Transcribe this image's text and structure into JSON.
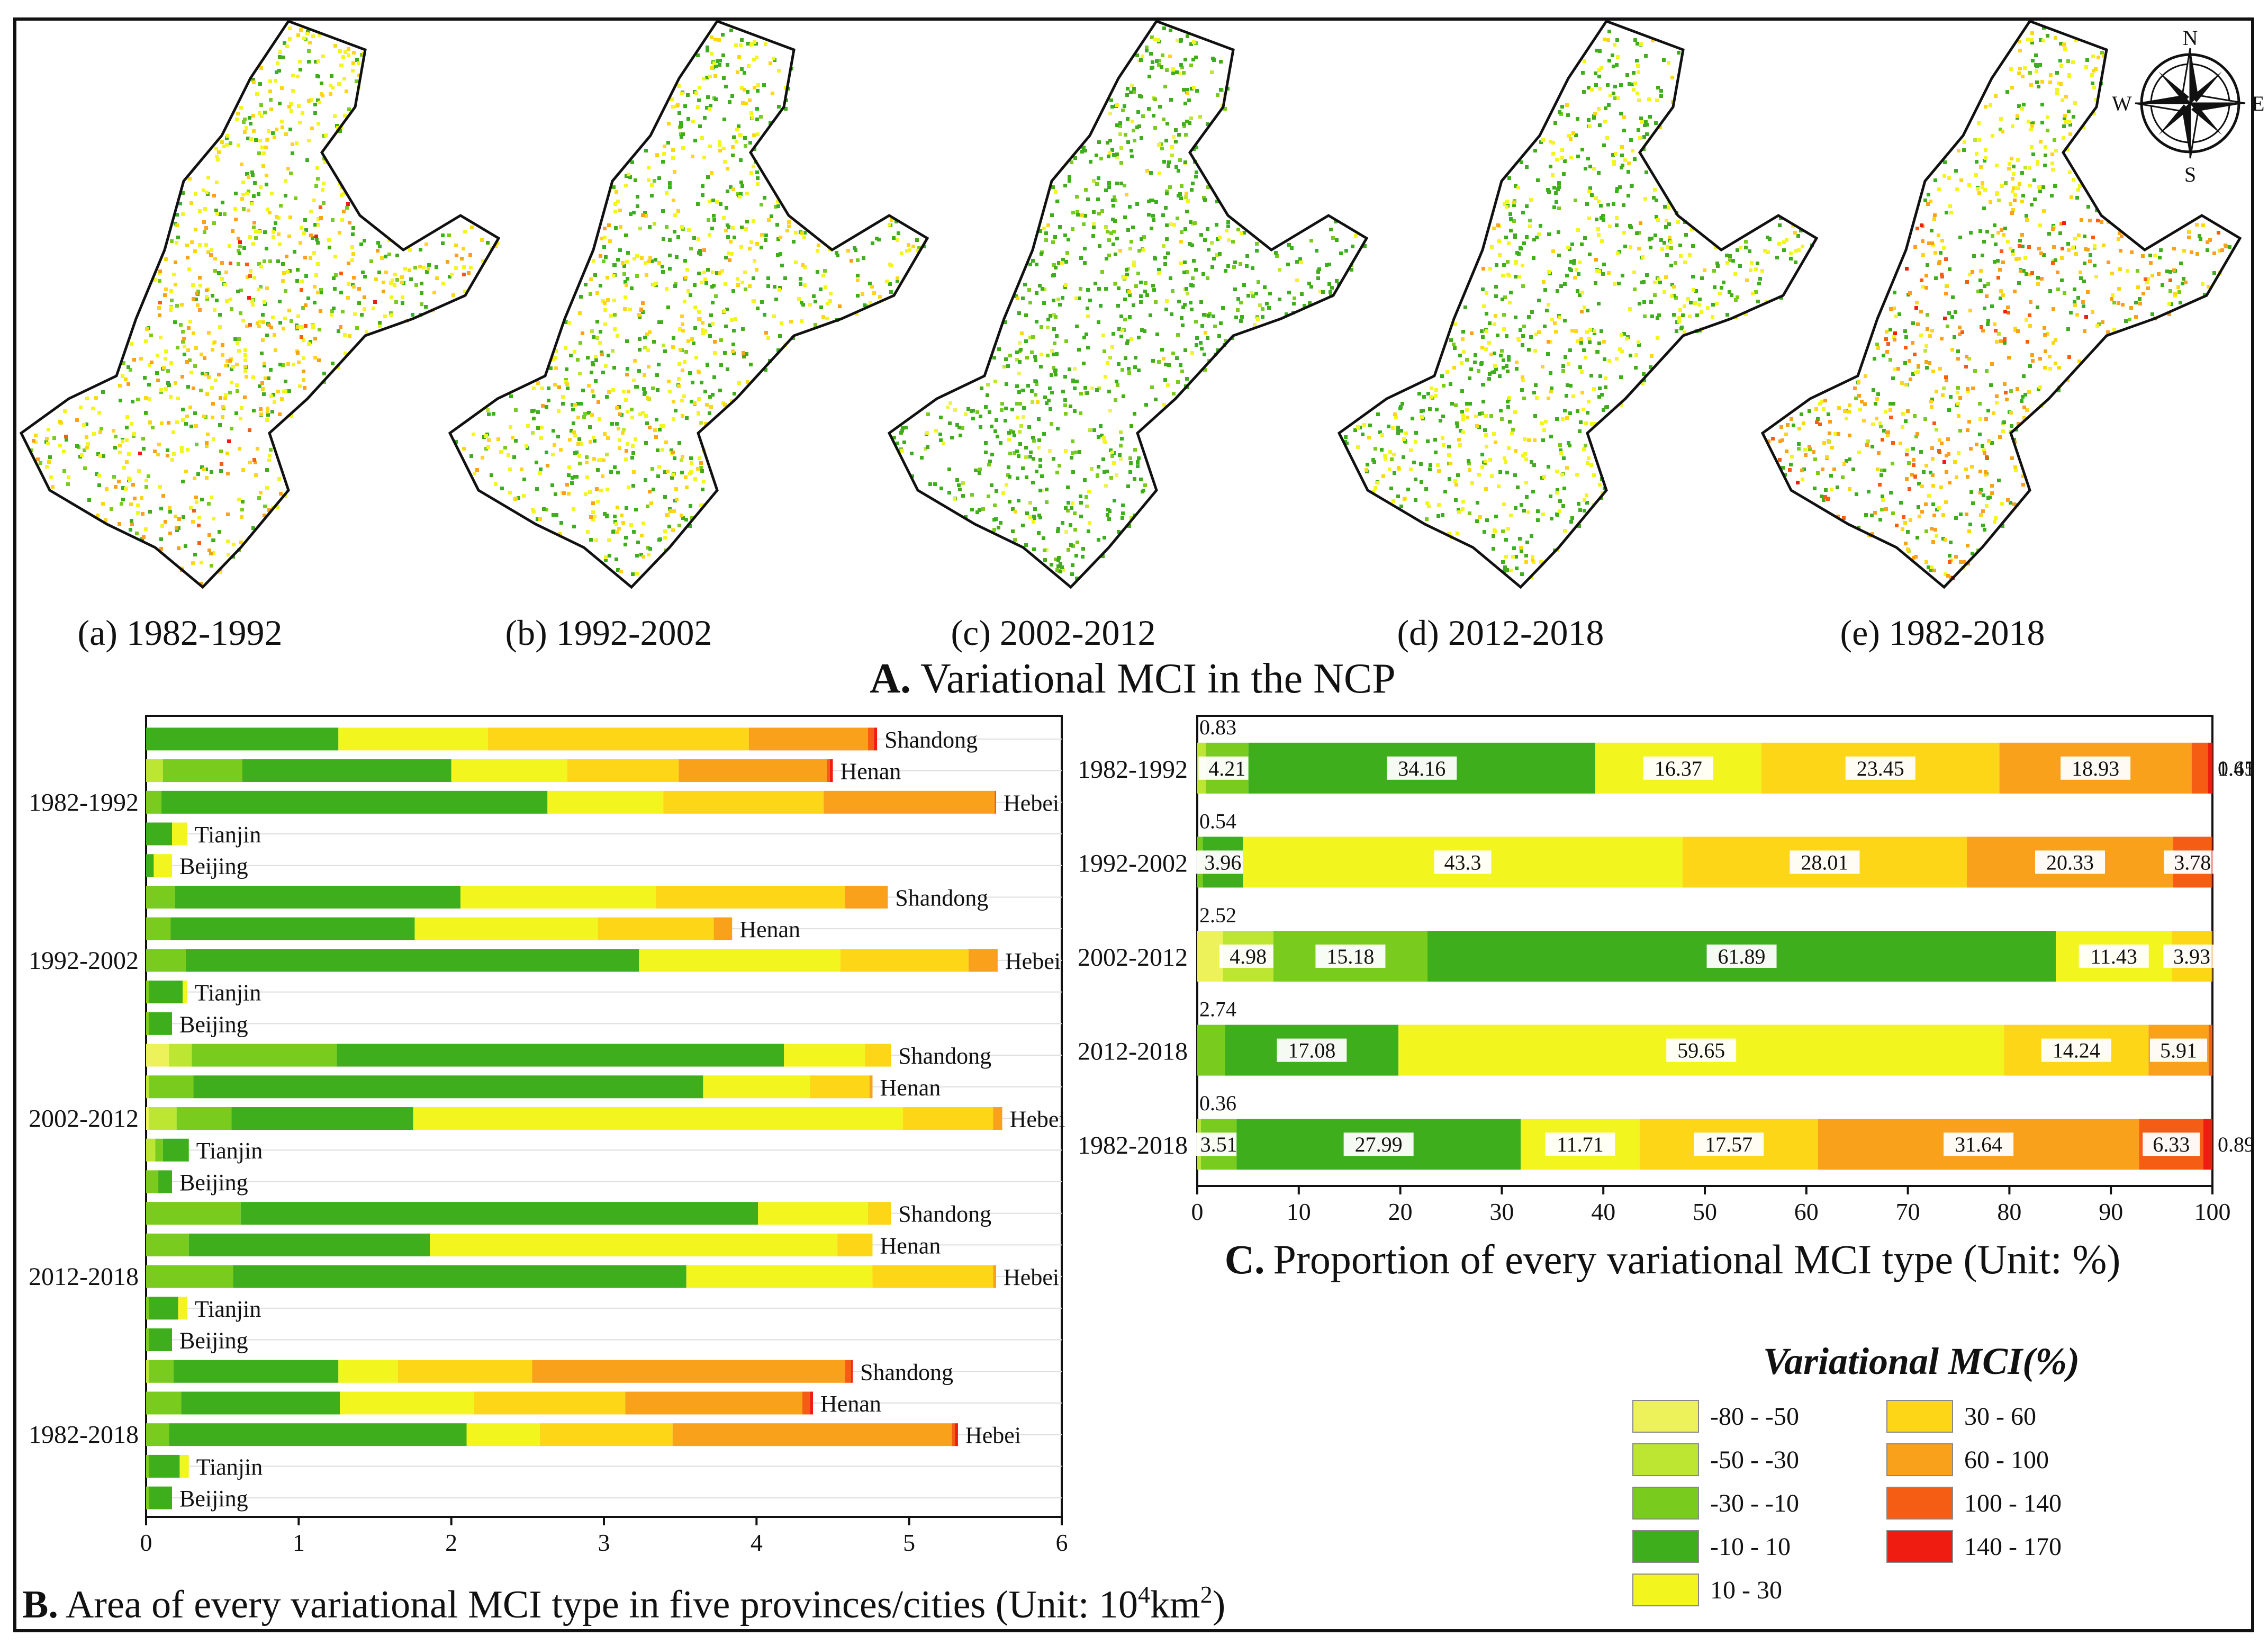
{
  "panel_a": {
    "title_letter": "A.",
    "title_text": "Variational MCI in the NCP",
    "maps": [
      {
        "label": "(a) 1982-1992"
      },
      {
        "label": "(b) 1992-2002"
      },
      {
        "label": "(c) 2002-2012"
      },
      {
        "label": "(d) 2012-2018"
      },
      {
        "label": "(e) 1982-2018"
      }
    ],
    "compass": {
      "n": "N",
      "s": "S",
      "e": "E",
      "w": "W"
    }
  },
  "legend": {
    "title": "Variational MCI(%)",
    "items": [
      {
        "label": "-80 - -50",
        "color": "#eef25a"
      },
      {
        "label": "-50 - -30",
        "color": "#bde632"
      },
      {
        "label": "-30 - -10",
        "color": "#79cc1e"
      },
      {
        "label": "-10 - 10",
        "color": "#3fae1c"
      },
      {
        "label": "10 - 30",
        "color": "#f3f51e"
      },
      {
        "label": "30 - 60",
        "color": "#fcd617"
      },
      {
        "label": "60 - 100",
        "color": "#f9a11b"
      },
      {
        "label": "100 - 140",
        "color": "#f55d15"
      },
      {
        "label": "140 - 170",
        "color": "#ee1c11"
      }
    ]
  },
  "chart_data": [
    {
      "id": "B",
      "type": "bar",
      "orientation": "horizontal",
      "stacked": true,
      "title_letter": "B.",
      "title_text": "Area of every variational MCI type in five provinces/cities (Unit: 10",
      "title_sup": "4",
      "title_tail": "km",
      "title_sup2": "2",
      "title_end": ")",
      "xlim": [
        0,
        6
      ],
      "xticks": [
        "0",
        "1",
        "2",
        "3",
        "4",
        "5",
        "6"
      ],
      "legend": "none",
      "groups": [
        {
          "label": "1982-1992",
          "rows": [
            {
              "name": "Shandong",
              "values": [
                0,
                0,
                0,
                1.26,
                0.98,
                1.71,
                0.78,
                0.04,
                0.02
              ]
            },
            {
              "name": "Henan",
              "values": [
                0,
                0.11,
                0.52,
                1.37,
                0.76,
                0.73,
                0.97,
                0.02,
                0.02
              ]
            },
            {
              "name": "Hebei",
              "values": [
                0,
                0,
                0.1,
                2.53,
                0.76,
                1.05,
                1.12,
                0.01,
                0
              ]
            },
            {
              "name": "Tianjin",
              "values": [
                0,
                0,
                0,
                0.17,
                0.1,
                0,
                0,
                0,
                0
              ]
            },
            {
              "name": "Beijing",
              "values": [
                0,
                0,
                0,
                0.05,
                0.12,
                0,
                0,
                0,
                0
              ]
            }
          ]
        },
        {
          "label": "1992-2002",
          "rows": [
            {
              "name": "Shandong",
              "values": [
                0,
                0,
                0.19,
                1.87,
                1.28,
                1.24,
                0.28,
                0,
                0
              ]
            },
            {
              "name": "Henan",
              "values": [
                0,
                0,
                0.16,
                1.6,
                1.2,
                0.76,
                0.12,
                0,
                0
              ]
            },
            {
              "name": "Hebei",
              "values": [
                0,
                0,
                0.26,
                2.97,
                1.32,
                0.84,
                0.19,
                0,
                0
              ]
            },
            {
              "name": "Tianjin",
              "values": [
                0,
                0,
                0.02,
                0.22,
                0.03,
                0,
                0,
                0,
                0
              ]
            },
            {
              "name": "Beijing",
              "values": [
                0,
                0,
                0.02,
                0.15,
                0,
                0,
                0,
                0,
                0
              ]
            }
          ]
        },
        {
          "label": "2002-2012",
          "rows": [
            {
              "name": "Shandong",
              "values": [
                0.15,
                0.15,
                0.95,
                2.93,
                0.53,
                0.17,
                0,
                0,
                0
              ]
            },
            {
              "name": "Henan",
              "values": [
                0,
                0.02,
                0.29,
                3.34,
                0.7,
                0.39,
                0.02,
                0,
                0
              ]
            },
            {
              "name": "Hebei",
              "values": [
                0.02,
                0.18,
                0.36,
                1.19,
                3.21,
                0.59,
                0.06,
                0,
                0
              ]
            },
            {
              "name": "Tianjin",
              "values": [
                0,
                0.06,
                0.05,
                0.17,
                0,
                0,
                0,
                0,
                0
              ]
            },
            {
              "name": "Beijing",
              "values": [
                0,
                0,
                0.08,
                0.09,
                0,
                0,
                0,
                0,
                0
              ]
            }
          ]
        },
        {
          "label": "2012-2018",
          "rows": [
            {
              "name": "Shandong",
              "values": [
                0,
                0,
                0.62,
                3.39,
                0.72,
                0.15,
                0,
                0,
                0
              ]
            },
            {
              "name": "Henan",
              "values": [
                0,
                0,
                0.28,
                1.58,
                2.67,
                0.23,
                0,
                0,
                0
              ]
            },
            {
              "name": "Hebei",
              "values": [
                0,
                0,
                0.57,
                2.97,
                1.22,
                0.79,
                0.02,
                0,
                0
              ]
            },
            {
              "name": "Tianjin",
              "values": [
                0,
                0,
                0.02,
                0.19,
                0.06,
                0,
                0,
                0,
                0
              ]
            },
            {
              "name": "Beijing",
              "values": [
                0,
                0,
                0.02,
                0.15,
                0,
                0,
                0,
                0,
                0
              ]
            }
          ]
        },
        {
          "label": "1982-2018",
          "rows": [
            {
              "name": "Shandong",
              "values": [
                0,
                0.02,
                0.16,
                1.08,
                0.39,
                0.88,
                2.05,
                0.04,
                0.01
              ]
            },
            {
              "name": "Henan",
              "values": [
                0,
                0,
                0.23,
                1.04,
                0.88,
                0.99,
                1.16,
                0.05,
                0.02
              ]
            },
            {
              "name": "Hebei",
              "values": [
                0,
                0,
                0.15,
                1.95,
                0.48,
                0.87,
                1.83,
                0.02,
                0.02
              ]
            },
            {
              "name": "Tianjin",
              "values": [
                0,
                0,
                0.02,
                0.2,
                0.06,
                0,
                0,
                0,
                0
              ]
            },
            {
              "name": "Beijing",
              "values": [
                0,
                0,
                0.02,
                0.15,
                0,
                0,
                0,
                0,
                0
              ]
            }
          ]
        }
      ]
    },
    {
      "id": "C",
      "type": "bar",
      "orientation": "horizontal",
      "stacked": true,
      "title_letter": "C.",
      "title_text": "Proportion of every variational MCI type (Unit: %)",
      "xlim": [
        0,
        100
      ],
      "xticks": [
        "0",
        "10",
        "20",
        "30",
        "40",
        "50",
        "60",
        "70",
        "80",
        "90",
        "100"
      ],
      "legend": "none",
      "rows": [
        {
          "label": "1982-1992",
          "values": [
            0,
            0.83,
            4.21,
            34.16,
            16.37,
            23.45,
            18.93,
            1.61,
            0.45
          ],
          "labels": [
            "",
            "0.83",
            "4.21",
            "34.16",
            "16.37",
            "23.45",
            "18.93",
            "1.61",
            "0.45"
          ]
        },
        {
          "label": "1992-2002",
          "values": [
            0,
            0,
            0.54,
            3.96,
            43.3,
            28.01,
            20.33,
            3.78,
            0.08
          ],
          "labels": [
            "",
            "",
            "0.54",
            "3.96",
            "43.3",
            "28.01",
            "20.33",
            "3.78",
            ""
          ]
        },
        {
          "label": "2002-2012",
          "values": [
            2.52,
            4.98,
            15.18,
            61.89,
            11.43,
            3.93,
            0.07,
            0,
            0
          ],
          "labels": [
            "2.52",
            "4.98",
            "15.18",
            "61.89",
            "11.43",
            "3.93",
            "",
            "",
            ""
          ]
        },
        {
          "label": "2012-2018",
          "values": [
            0,
            0,
            2.74,
            17.08,
            59.65,
            14.24,
            5.91,
            0.38,
            0
          ],
          "labels": [
            "",
            "",
            "2.74",
            "17.08",
            "59.65",
            "14.24",
            "5.91",
            "",
            ""
          ]
        },
        {
          "label": "1982-2018",
          "values": [
            0,
            0.36,
            3.51,
            27.99,
            11.71,
            17.57,
            31.64,
            6.33,
            0.89
          ],
          "labels": [
            "",
            "0.36",
            "3.51",
            "27.99",
            "11.71",
            "17.57",
            "31.64",
            "6.33",
            "0.89"
          ]
        }
      ]
    }
  ]
}
